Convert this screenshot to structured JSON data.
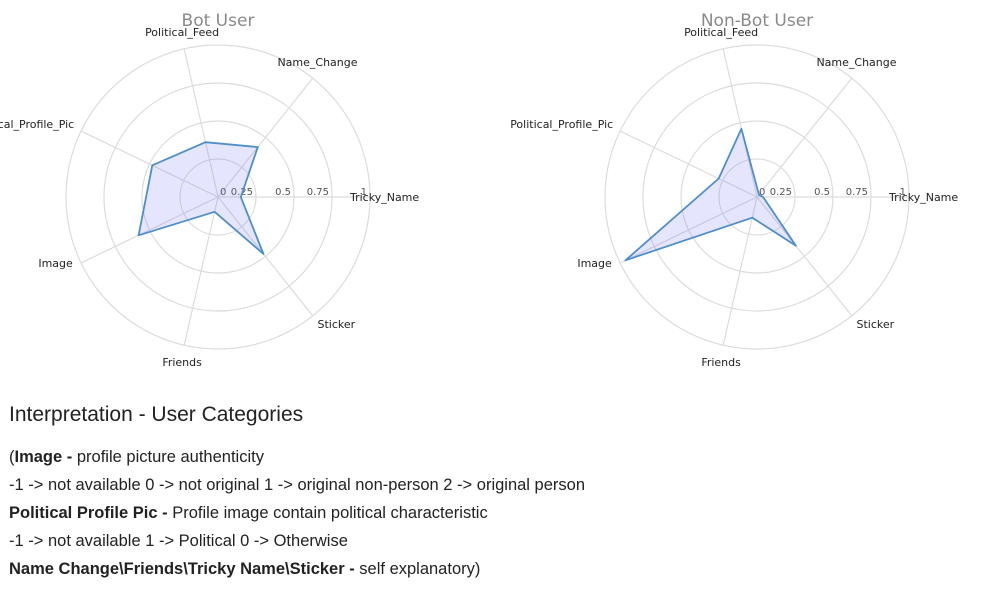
{
  "chart_data": [
    {
      "type": "radar",
      "title": "Bot User",
      "axes": [
        "Tricky_Name",
        "Name_Change",
        "Political_Feed",
        "Political_Profile_Pic",
        "Image",
        "Friends",
        "Sticker"
      ],
      "tick_labels": [
        "0",
        "0.25",
        "0.5",
        "0.75",
        "1"
      ],
      "rlim": [
        0,
        1
      ],
      "series": [
        {
          "values": [
            0.15,
            0.42,
            0.37,
            0.48,
            0.58,
            0.1,
            0.48
          ]
        }
      ]
    },
    {
      "type": "radar",
      "title": "Non-Bot User",
      "axes": [
        "Tricky_Name",
        "Name_Change",
        "Political_Feed",
        "Political_Profile_Pic",
        "Image",
        "Friends",
        "Sticker"
      ],
      "tick_labels": [
        "0",
        "0.25",
        "0.5",
        "0.75",
        "1"
      ],
      "rlim": [
        0,
        1
      ],
      "series": [
        {
          "values": [
            0.04,
            0.02,
            0.46,
            0.28,
            0.96,
            0.14,
            0.41
          ]
        }
      ]
    }
  ],
  "colors": {
    "fill": "#6e6ef5",
    "line": "#4f8fc9",
    "grid": "#dcdcdc",
    "title": "#8a8a8a"
  },
  "interpretation": {
    "heading": "Interpretation - User Categories",
    "line1_prefix": "(",
    "line1_bold": "Image -",
    "line1_text": " profile picture authenticity",
    "line2": "-1 -> not available 0 -> not original 1 -> original non-person 2 -> original person",
    "line3_bold": "Political Profile Pic -",
    "line3_text": " Profile image contain political characteristic",
    "line4": "-1 -> not available 1 -> Political 0 -> Otherwise",
    "line5_bold": "Name Change\\Friends\\Tricky Name\\Sticker -",
    "line5_text": " self explanatory)"
  }
}
